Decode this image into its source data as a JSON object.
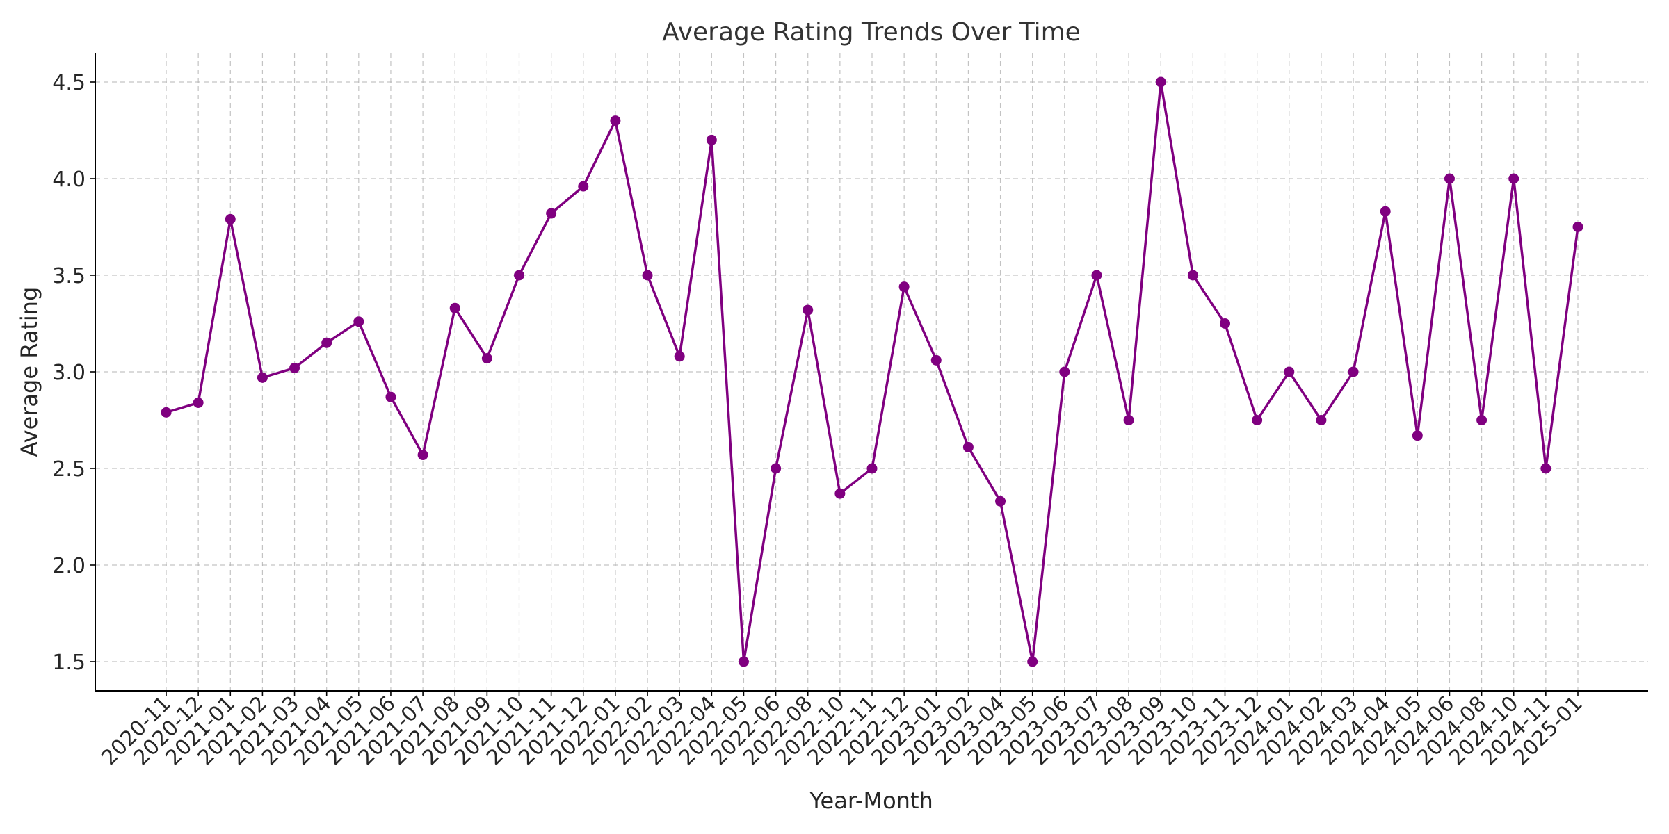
{
  "chart_data": {
    "type": "line",
    "title": "Average Rating Trends Over Time",
    "xlabel": "Year-Month",
    "ylabel": "Average Rating",
    "ylim": [
      1.35,
      4.65
    ],
    "yticks": [
      1.5,
      2.0,
      2.5,
      3.0,
      3.5,
      4.0,
      4.5
    ],
    "grid": true,
    "line_color": "#800080",
    "x": [
      "2020-11",
      "2020-12",
      "2021-01",
      "2021-02",
      "2021-03",
      "2021-04",
      "2021-05",
      "2021-06",
      "2021-07",
      "2021-08",
      "2021-09",
      "2021-10",
      "2021-11",
      "2021-12",
      "2022-01",
      "2022-02",
      "2022-03",
      "2022-04",
      "2022-05",
      "2022-06",
      "2022-08",
      "2022-10",
      "2022-11",
      "2022-12",
      "2023-01",
      "2023-02",
      "2023-04",
      "2023-05",
      "2023-06",
      "2023-07",
      "2023-08",
      "2023-09",
      "2023-10",
      "2023-11",
      "2023-12",
      "2024-01",
      "2024-02",
      "2024-03",
      "2024-04",
      "2024-05",
      "2024-06",
      "2024-08",
      "2024-10",
      "2024-11",
      "2025-01"
    ],
    "values": [
      2.79,
      2.84,
      3.79,
      2.97,
      3.02,
      3.15,
      3.26,
      2.87,
      2.57,
      3.33,
      3.07,
      3.5,
      3.82,
      3.96,
      4.3,
      3.5,
      3.08,
      4.2,
      1.5,
      2.5,
      3.32,
      2.37,
      2.5,
      3.44,
      3.06,
      2.61,
      2.33,
      1.5,
      3.0,
      3.5,
      2.75,
      4.5,
      3.5,
      3.25,
      2.75,
      3.0,
      2.75,
      3.0,
      3.83,
      2.67,
      4.0,
      2.75,
      4.0,
      2.5,
      3.75
    ]
  }
}
